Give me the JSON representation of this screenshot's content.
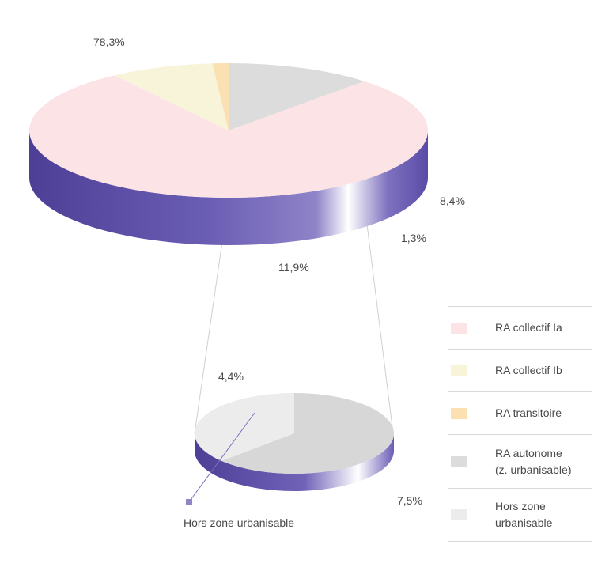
{
  "chart_data": [
    {
      "type": "pie",
      "categories": [
        "RA collectif Ia",
        "RA collectif Ib",
        "RA transitoire",
        "RA autonome (z. urbanisable)"
      ],
      "values": [
        78.3,
        8.4,
        1.3,
        11.9
      ],
      "labels": [
        "78,3%",
        "8,4%",
        "1,3%",
        "11,9%"
      ],
      "colors": [
        "#fbe3e6",
        "#f8f4da",
        "#fbe0b2",
        "#dcdcdc"
      ]
    },
    {
      "type": "pie",
      "categories": [
        "Hors zone urbanisable",
        "RA autonome (z. urbanisable)"
      ],
      "values": [
        4.4,
        7.5
      ],
      "labels": [
        "4,4%",
        "7,5%"
      ],
      "colors": [
        "#ececec",
        "#d7d7d7"
      ],
      "annotation": "Hors zone urbanisable"
    }
  ],
  "legend": [
    {
      "label": "RA collectif Ia",
      "color": "#fbe3e6"
    },
    {
      "label": "RA collectif Ib",
      "color": "#f8f4da"
    },
    {
      "label": "RA transitoire",
      "color": "#fbe0b2"
    },
    {
      "label": "RA autonome\n(z. urbanisable)",
      "color": "#dcdcdc"
    },
    {
      "label": "Hors zone\nurbanisable",
      "color": "#ececec"
    }
  ],
  "colors": {
    "side_dark": "#4e3f96",
    "side_mid": "#6a5db4",
    "side_light": "#ffffff"
  }
}
